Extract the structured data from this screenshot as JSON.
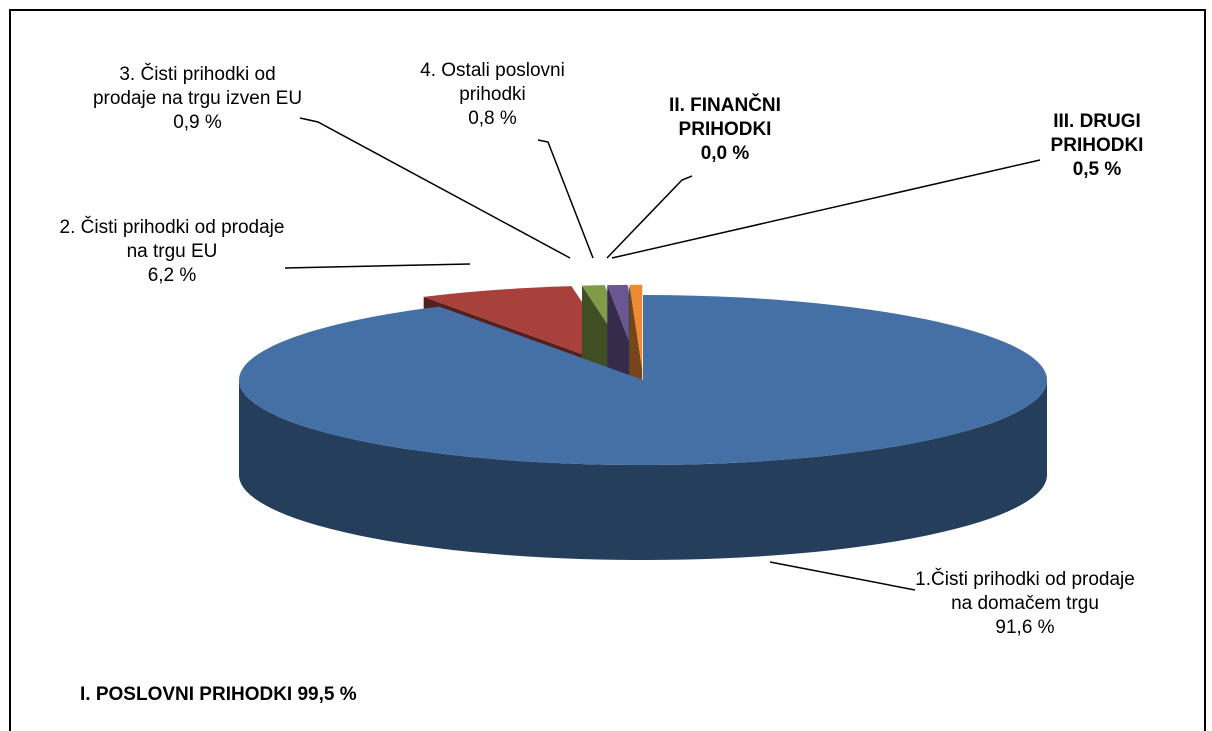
{
  "chart_data": {
    "type": "pie3d",
    "categories": [
      "1.Čisti prihodki od prodaje na domačem trgu",
      "2. Čisti prihodki od prodaje na trgu EU",
      "3. Čisti prihodki od prodaje na trgu izven EU",
      "4. Ostali poslovni prihodki",
      "II. FINANČNI PRIHODKI",
      "III. DRUGI PRIHODKI"
    ],
    "values": [
      91.6,
      6.2,
      0.9,
      0.8,
      0.0,
      0.5
    ],
    "value_labels": [
      "91,6 %",
      "6,2 %",
      "0,9 %",
      "0,8 %",
      "0,0 %",
      "0,5 %"
    ],
    "colors": [
      "#4470a6",
      "#a8403c",
      "#7f9b47",
      "#6b5691",
      "#3f95ad",
      "#ee8a32"
    ],
    "annotation": "I. POSLOVNI PRIHODKI 99,5 %"
  }
}
